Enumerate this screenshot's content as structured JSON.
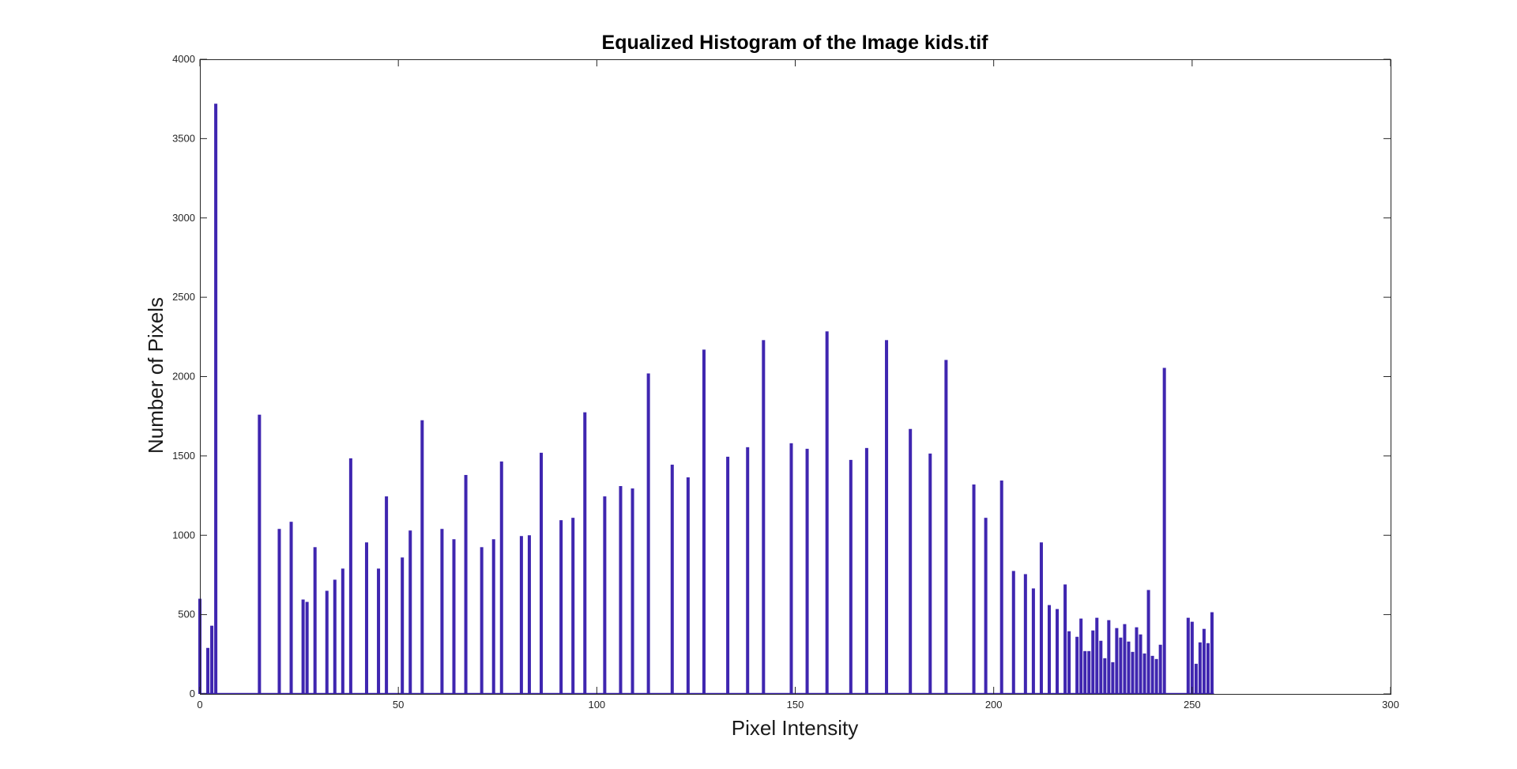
{
  "chart_data": {
    "type": "bar",
    "title": "Equalized Histogram of the Image kids.tif",
    "xlabel": "Pixel Intensity",
    "ylabel": "Number of Pixels",
    "xlim": [
      0,
      300
    ],
    "ylim": [
      0,
      4000
    ],
    "xticks": [
      0,
      50,
      100,
      150,
      200,
      250,
      300
    ],
    "yticks": [
      0,
      500,
      1000,
      1500,
      2000,
      2500,
      3000,
      3500,
      4000
    ],
    "grid": false,
    "bar_color": "#3f26b0",
    "series": [
      {
        "x": [
          0,
          2,
          3,
          4,
          15,
          20,
          23,
          26,
          27,
          29,
          32,
          34,
          36,
          38,
          42,
          45,
          47,
          51,
          53,
          56,
          61,
          64,
          67,
          71,
          74,
          76,
          81,
          83,
          86,
          91,
          94,
          97,
          102,
          106,
          109,
          113,
          119,
          123,
          127,
          133,
          138,
          142,
          149,
          153,
          158,
          164,
          168,
          173,
          179,
          184,
          188,
          195,
          198,
          202,
          205,
          208,
          210,
          212,
          214,
          216,
          218,
          219,
          220,
          221,
          222,
          223,
          224,
          225,
          226,
          227,
          228,
          229,
          230,
          231,
          232,
          233,
          234,
          235,
          236,
          237,
          238,
          239,
          240,
          241,
          242,
          243,
          249,
          250,
          251,
          252,
          253,
          254,
          255
        ],
        "values": [
          600,
          290,
          430,
          3720,
          1760,
          1040,
          1085,
          595,
          580,
          925,
          650,
          720,
          790,
          1485,
          955,
          790,
          1245,
          860,
          1030,
          1725,
          1040,
          975,
          1380,
          925,
          975,
          1465,
          995,
          1000,
          1520,
          1095,
          1110,
          1775,
          1245,
          1310,
          1295,
          2020,
          1445,
          1365,
          2170,
          1495,
          1555,
          2230,
          1580,
          1545,
          2285,
          1475,
          1550,
          2230,
          1670,
          1515,
          2105,
          1320,
          1110,
          1345,
          775,
          755,
          665,
          955,
          560,
          535,
          690,
          395,
          0,
          360,
          475,
          270,
          270,
          400,
          480,
          335,
          225,
          465,
          200,
          415,
          355,
          440,
          330,
          265,
          420,
          375,
          255,
          655,
          240,
          220,
          310,
          2055,
          480,
          455,
          190,
          325,
          410,
          320,
          515
        ]
      }
    ]
  }
}
